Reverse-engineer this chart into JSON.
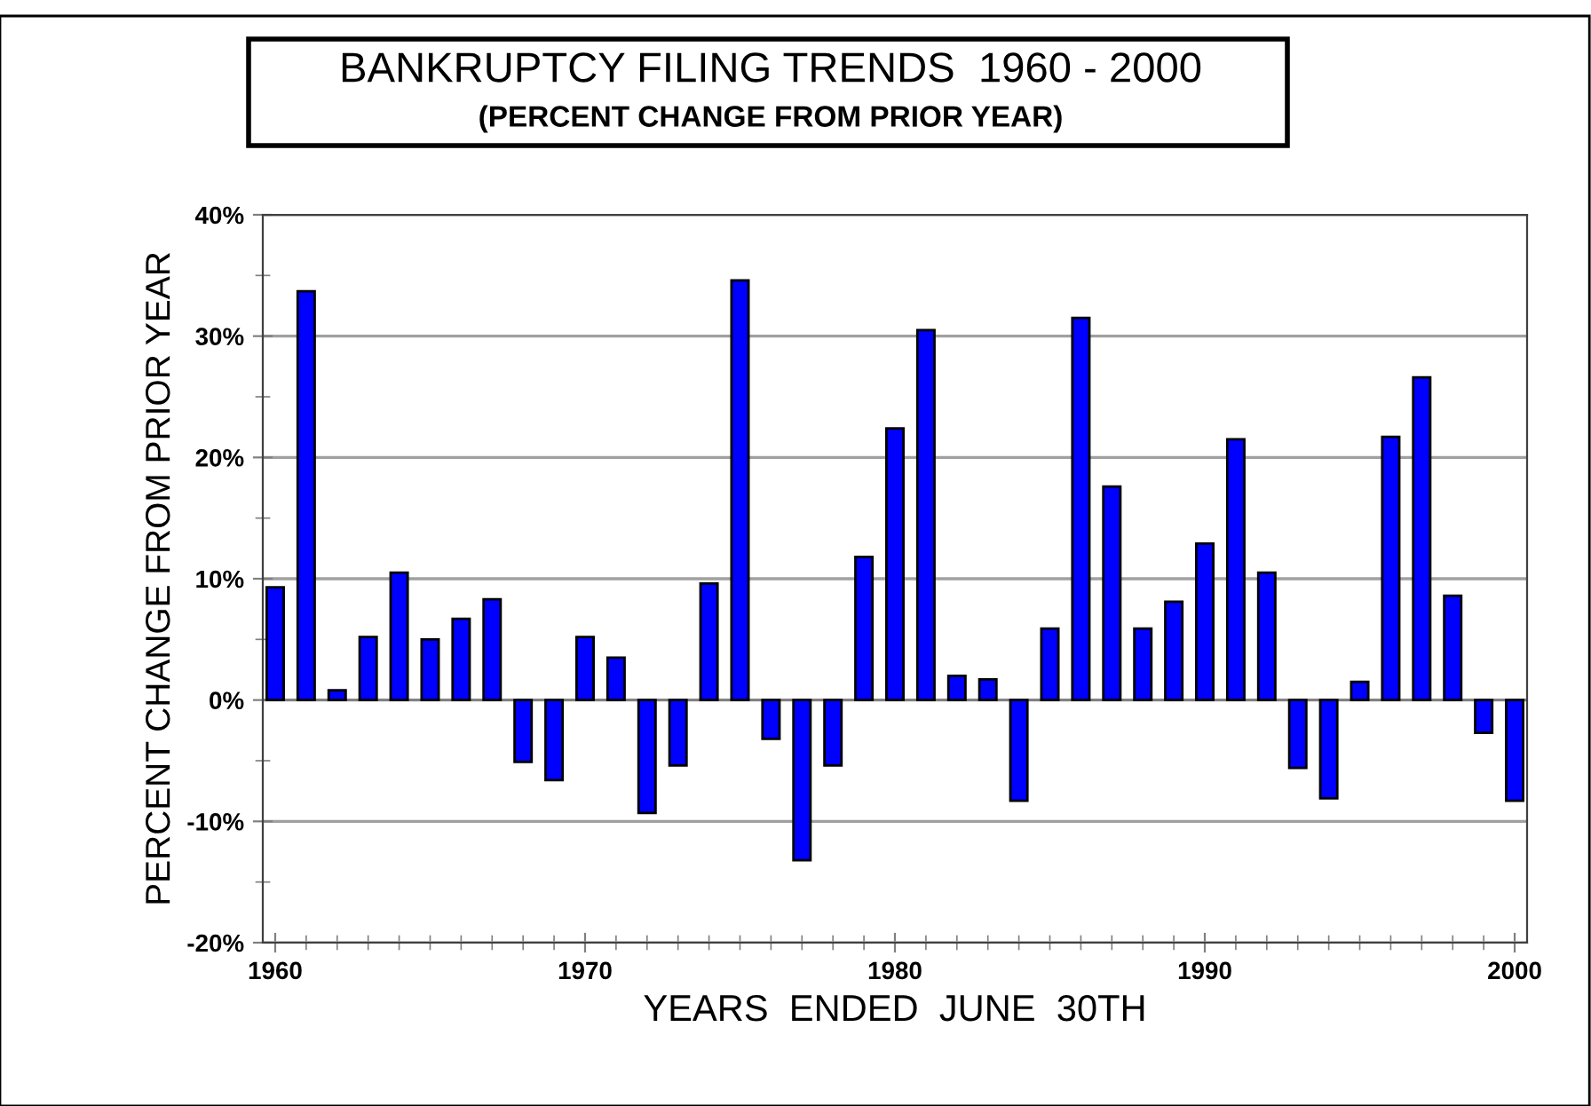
{
  "chart_data": {
    "type": "bar",
    "title": "BANKRUPTCY FILING TRENDS  1960 - 2000",
    "subtitle": "(PERCENT CHANGE FROM PRIOR YEAR)",
    "xlabel": "YEARS  ENDED  JUNE  30TH",
    "ylabel": "PERCENT CHANGE FROM PRIOR YEAR",
    "x": [
      1960,
      1961,
      1962,
      1963,
      1964,
      1965,
      1966,
      1967,
      1968,
      1969,
      1970,
      1971,
      1972,
      1973,
      1974,
      1975,
      1976,
      1977,
      1978,
      1979,
      1980,
      1981,
      1982,
      1983,
      1984,
      1985,
      1986,
      1987,
      1988,
      1989,
      1990,
      1991,
      1992,
      1993,
      1994,
      1995,
      1996,
      1997,
      1998,
      1999,
      2000
    ],
    "values": [
      9.3,
      33.7,
      0.8,
      5.2,
      10.5,
      5.0,
      6.7,
      8.3,
      -5.1,
      -6.6,
      5.2,
      3.5,
      -9.3,
      -5.4,
      9.6,
      34.6,
      -3.2,
      -13.2,
      -5.4,
      11.8,
      22.4,
      30.5,
      2.0,
      1.7,
      -8.3,
      5.9,
      31.5,
      17.6,
      5.9,
      8.1,
      12.9,
      21.5,
      10.5,
      -5.6,
      -8.1,
      1.5,
      21.7,
      26.6,
      8.6,
      -2.7,
      -8.3
    ],
    "color": "#0000ff",
    "xlim": [
      1959.6,
      2000.4
    ],
    "xticks": [
      1960,
      1970,
      1980,
      1990,
      2000
    ],
    "ylim": [
      -20,
      40
    ],
    "yticks": [
      {
        "value": -20,
        "label": "-20%"
      },
      {
        "value": -10,
        "label": "-10%"
      },
      {
        "value": 0,
        "label": "0%"
      },
      {
        "value": 10,
        "label": "10%"
      },
      {
        "value": 20,
        "label": "20%"
      },
      {
        "value": 30,
        "label": "30%"
      },
      {
        "value": 40,
        "label": "40%"
      }
    ],
    "grid": "y"
  }
}
